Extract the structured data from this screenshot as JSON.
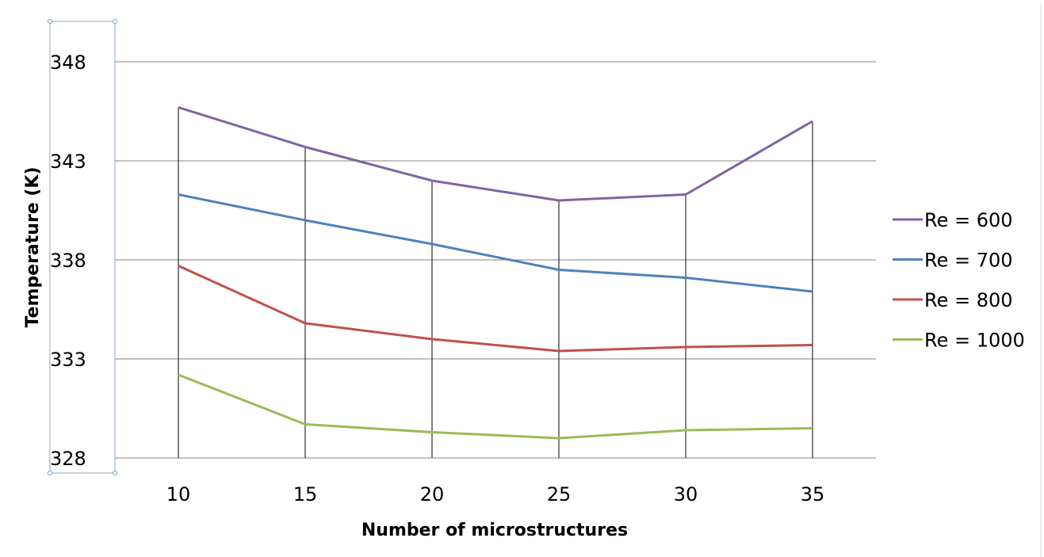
{
  "chart_data": {
    "type": "line",
    "title": "",
    "xlabel": "Number of microstructures",
    "ylabel": "Temperature (K)",
    "categories": [
      "10",
      "15",
      "20",
      "25",
      "30",
      "35"
    ],
    "ylim": [
      328,
      348
    ],
    "yticks": [
      "328",
      "333",
      "338",
      "343",
      "348"
    ],
    "grid": "horizontal",
    "drop_lines": true,
    "legend_position": "right",
    "series": [
      {
        "name": "Re = 600",
        "color": "#8064a2",
        "values": [
          345.7,
          343.7,
          342.0,
          341.0,
          341.3,
          345.0
        ]
      },
      {
        "name": "Re = 700",
        "color": "#4f81bd",
        "values": [
          341.3,
          340.0,
          338.8,
          337.5,
          337.1,
          336.4
        ]
      },
      {
        "name": "Re = 800",
        "color": "#c0504d",
        "values": [
          337.7,
          334.8,
          334.0,
          333.4,
          333.6,
          333.7
        ]
      },
      {
        "name": "Re = 1000",
        "color": "#9bbb59",
        "values": [
          332.2,
          329.7,
          329.3,
          329.0,
          329.4,
          329.5
        ]
      }
    ]
  }
}
